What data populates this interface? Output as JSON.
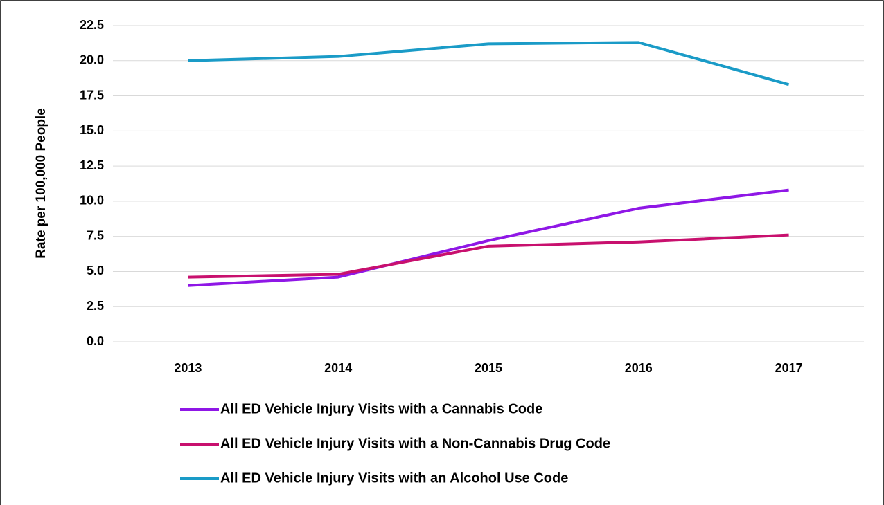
{
  "chart_data": {
    "type": "line",
    "ylabel": "Rate per 100,000 People",
    "categories": [
      "2013",
      "2014",
      "2015",
      "2016",
      "2017"
    ],
    "series": [
      {
        "name": "All ED Vehicle Injury Visits with a Cannabis Code",
        "color": "#8f17e6",
        "values": [
          4.0,
          4.6,
          7.2,
          9.5,
          10.8
        ]
      },
      {
        "name": "All ED Vehicle Injury Visits with a Non-Cannabis Drug Code",
        "color": "#c8106e",
        "values": [
          4.6,
          4.8,
          6.8,
          7.1,
          7.6
        ]
      },
      {
        "name": "All ED Vehicle Injury Visits with an Alcohol Use Code",
        "color": "#1a9bc7",
        "values": [
          20.0,
          20.3,
          21.2,
          21.3,
          18.3
        ]
      }
    ],
    "ylim": [
      0,
      22.5
    ],
    "yticks": [
      {
        "value": 0,
        "label": "0.0"
      },
      2.5,
      {
        "value": 5,
        "label": "5.0"
      },
      7.5,
      {
        "value": 10,
        "label": "10.0"
      },
      12.5,
      {
        "value": 15,
        "label": "15.0"
      },
      17.5,
      {
        "value": 20,
        "label": "20.0"
      },
      22.5
    ],
    "grid": true,
    "legend": "bottom"
  }
}
